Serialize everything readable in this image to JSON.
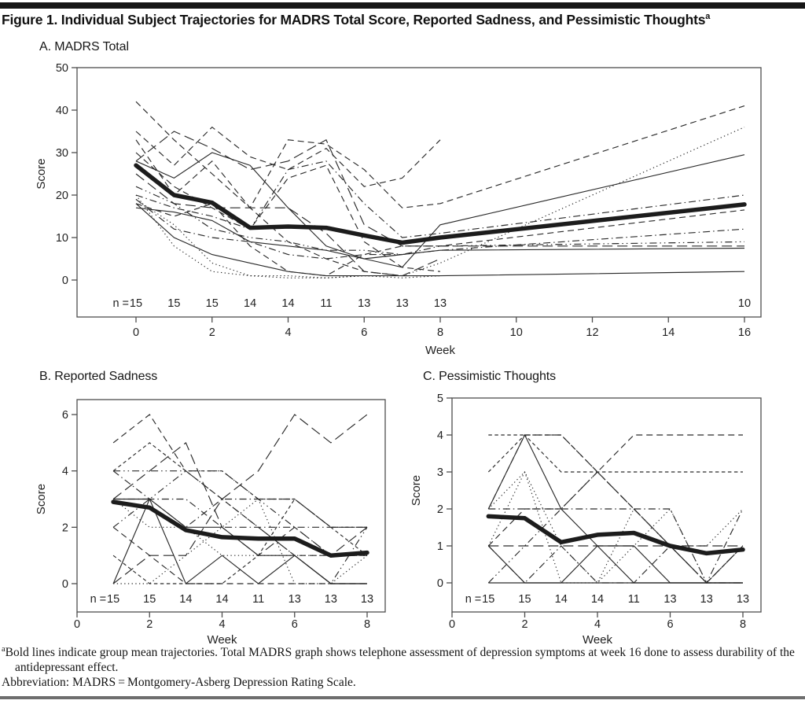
{
  "figure": {
    "title": "Figure 1. Individual Subject Trajectories for MADRS Total Score, Reported Sadness, and Pessimistic Thoughts",
    "title_superscript": "a",
    "footnote_marker": "a",
    "footnote_text": "Bold lines indicate group mean trajectories. Total MADRS graph shows telephone assessment of depression symptoms at week 16 done to assess durability of the antidepressant effect.",
    "abbreviation": "Abbreviation: MADRS = Montgomery-Asberg Depression Rating Scale."
  },
  "colors": {
    "line": "#2a2a2a",
    "mean": "#1c1c1c",
    "frame": "#4d4d4d",
    "text": "#222222"
  },
  "chart_data": [
    {
      "id": "A",
      "type": "line",
      "title": "A. MADRS Total",
      "xlabel": "Week",
      "ylabel": "Score",
      "xlim": [
        0,
        16
      ],
      "ylim": [
        0,
        50
      ],
      "x_ticks": [
        0,
        2,
        4,
        6,
        8,
        10,
        12,
        14,
        16
      ],
      "y_ticks": [
        0,
        10,
        20,
        30,
        40,
        50
      ],
      "grid": false,
      "n_label": "n =",
      "n_weeks": [
        0,
        1,
        2,
        3,
        4,
        5,
        6,
        7,
        8
      ],
      "n_values": [
        15,
        15,
        15,
        14,
        14,
        11,
        13,
        13,
        13
      ],
      "n_extra": {
        "week": 16,
        "value": 10
      },
      "mean": {
        "name": "group mean",
        "weeks": [
          0,
          1,
          2,
          3,
          4,
          5,
          6,
          7,
          8,
          16
        ],
        "values": [
          27,
          20,
          18.2,
          12.3,
          12.6,
          12.3,
          10.5,
          8.8,
          10,
          17.8
        ]
      },
      "individuals": [
        {
          "style": "dash",
          "weeks": [
            0,
            1,
            2,
            3,
            4,
            5,
            6,
            7,
            8
          ],
          "values": [
            42,
            33,
            25,
            17,
            9,
            5,
            2,
            1,
            1
          ]
        },
        {
          "style": "dash",
          "weeks": [
            0,
            1,
            2,
            3,
            4,
            5,
            6,
            7,
            8
          ],
          "values": [
            35,
            27,
            36,
            29,
            26,
            31,
            22,
            24,
            33
          ]
        },
        {
          "style": "solid",
          "weeks": [
            0,
            1,
            2,
            3,
            4,
            5,
            6,
            7,
            8,
            16
          ],
          "values": [
            28,
            24,
            30,
            27,
            17,
            8,
            5,
            3,
            13,
            29.5
          ]
        },
        {
          "style": "dot",
          "weeks": [
            0,
            1,
            2,
            3,
            4,
            5,
            6,
            7,
            8,
            16
          ],
          "values": [
            19,
            13,
            4,
            1,
            1,
            0.5,
            1,
            1,
            4,
            36
          ]
        },
        {
          "style": "dash",
          "weeks": [
            0,
            1,
            2,
            3,
            4,
            5,
            6,
            7,
            8,
            16
          ],
          "values": [
            33,
            20,
            28,
            17,
            33,
            32,
            26,
            17,
            18,
            41
          ]
        },
        {
          "style": "dashdot",
          "weeks": [
            0,
            1,
            2,
            3,
            4,
            5,
            6,
            7,
            8,
            16
          ],
          "values": [
            20,
            17,
            15,
            12,
            26,
            28,
            18,
            10,
            11,
            20
          ]
        },
        {
          "style": "dash",
          "weeks": [
            0,
            1,
            2,
            3,
            4,
            5,
            6,
            7,
            8,
            16
          ],
          "values": [
            18,
            15,
            18,
            8,
            2,
            1,
            6,
            8,
            8,
            16.5
          ]
        },
        {
          "style": "dashdotdot",
          "weeks": [
            0,
            1,
            2,
            3,
            4,
            5,
            6,
            7,
            8,
            16
          ],
          "values": [
            22,
            18,
            12,
            10,
            9,
            7,
            7,
            6,
            8,
            9
          ]
        },
        {
          "style": "dashdot",
          "weeks": [
            0,
            1,
            2,
            3,
            4,
            5,
            6,
            7,
            8,
            16
          ],
          "values": [
            19,
            12,
            10,
            9,
            6,
            5,
            6,
            6,
            7,
            12
          ]
        },
        {
          "style": "solid",
          "weeks": [
            0,
            1,
            2,
            3,
            4,
            5,
            6,
            7,
            8,
            16
          ],
          "values": [
            17,
            16,
            14,
            9,
            8,
            7,
            5,
            6,
            7,
            7.5
          ]
        },
        {
          "style": "solid",
          "weeks": [
            0,
            1,
            2,
            3,
            4,
            5,
            6,
            7,
            8,
            16
          ],
          "values": [
            18,
            10,
            6,
            4,
            2,
            1,
            1,
            1,
            1,
            2
          ]
        },
        {
          "style": "longdash",
          "weeks": [
            0,
            1,
            2,
            3,
            4,
            5,
            6,
            7,
            8
          ],
          "values": [
            25,
            18,
            17,
            17,
            17,
            11,
            2,
            1,
            5
          ]
        },
        {
          "style": "dash",
          "weeks": [
            0,
            1,
            2,
            3,
            4,
            5,
            6,
            7,
            8
          ],
          "values": [
            30,
            22,
            17,
            12,
            24,
            27,
            9,
            3,
            2
          ]
        },
        {
          "style": "dot",
          "weeks": [
            0,
            1,
            2,
            3,
            4,
            5,
            6,
            7,
            8
          ],
          "values": [
            20,
            8,
            2,
            1,
            0.5,
            0.5,
            1,
            0.5,
            1
          ]
        },
        {
          "style": "longdash",
          "weeks": [
            0,
            1,
            2,
            3,
            4,
            5,
            6,
            7,
            8,
            16
          ],
          "values": [
            28,
            35,
            31,
            26,
            28,
            33,
            13,
            8,
            8,
            8
          ]
        }
      ]
    },
    {
      "id": "B",
      "type": "line",
      "title": "B. Reported Sadness",
      "xlabel": "Week",
      "ylabel": "Score",
      "xlim": [
        0,
        8
      ],
      "ylim": [
        0,
        6
      ],
      "x_ticks": [
        0,
        2,
        4,
        6,
        8
      ],
      "y_ticks": [
        0,
        2,
        4,
        6
      ],
      "grid": false,
      "n_label": "n =",
      "n_weeks": [
        1,
        2,
        3,
        4,
        5,
        6,
        7,
        8
      ],
      "n_values": [
        15,
        15,
        14,
        14,
        11,
        13,
        13,
        13
      ],
      "mean": {
        "name": "group mean",
        "weeks": [
          1,
          2,
          3,
          4,
          5,
          6,
          7,
          8
        ],
        "values": [
          2.9,
          2.7,
          1.9,
          1.65,
          1.6,
          1.6,
          1.0,
          1.1
        ]
      },
      "individuals": [
        {
          "style": "dash",
          "weeks": [
            1,
            2,
            3,
            4,
            5,
            6,
            7,
            8
          ],
          "values": [
            5,
            6,
            4,
            3,
            2,
            1,
            1,
            1
          ]
        },
        {
          "style": "shortdash",
          "weeks": [
            1,
            2,
            3,
            4,
            5,
            6,
            7,
            8
          ],
          "values": [
            4,
            5,
            4,
            4,
            3,
            3,
            2,
            2
          ]
        },
        {
          "style": "dashdotdot",
          "weeks": [
            1,
            2,
            3,
            4,
            5,
            6,
            7,
            8
          ],
          "values": [
            4,
            4,
            4,
            4,
            3,
            2,
            1,
            1
          ]
        },
        {
          "style": "longdash",
          "weeks": [
            1,
            2,
            3,
            4,
            5,
            6,
            7,
            8
          ],
          "values": [
            0,
            1,
            1,
            3,
            4,
            6,
            5,
            6
          ]
        },
        {
          "style": "dashdot",
          "weeks": [
            1,
            2,
            3,
            4,
            5,
            6,
            7,
            8
          ],
          "values": [
            3,
            3,
            2,
            3,
            3,
            3,
            2,
            2
          ]
        },
        {
          "style": "solid",
          "weeks": [
            1,
            2,
            3,
            4,
            5,
            6,
            7,
            8
          ],
          "values": [
            0,
            3,
            0,
            1,
            0,
            1,
            0,
            0
          ]
        },
        {
          "style": "dot",
          "weeks": [
            1,
            2,
            3,
            4,
            5,
            6,
            7,
            8
          ],
          "values": [
            0,
            0,
            1,
            2,
            3,
            0,
            0,
            1
          ]
        },
        {
          "style": "dash",
          "weeks": [
            1,
            2,
            3,
            4,
            5,
            6,
            7,
            8
          ],
          "values": [
            2,
            1,
            0,
            0,
            0,
            0,
            0,
            0
          ]
        },
        {
          "style": "dashdot",
          "weeks": [
            1,
            2,
            3,
            4,
            5,
            6,
            7,
            8
          ],
          "values": [
            4,
            3,
            3,
            2,
            2,
            2,
            2,
            2
          ]
        },
        {
          "style": "longdash",
          "weeks": [
            1,
            2,
            3,
            4,
            5,
            6,
            7,
            8
          ],
          "values": [
            3,
            4,
            5,
            2,
            1,
            2,
            1,
            2
          ]
        },
        {
          "style": "solid",
          "weeks": [
            1,
            2,
            3,
            4,
            5,
            6,
            7,
            8
          ],
          "values": [
            3,
            3,
            2,
            2,
            1,
            1,
            0,
            0
          ]
        },
        {
          "style": "dot",
          "weeks": [
            1,
            2,
            3,
            4,
            5,
            6,
            7,
            8
          ],
          "values": [
            3,
            2,
            2,
            1,
            1,
            1,
            1,
            1
          ]
        },
        {
          "style": "shortdash",
          "weeks": [
            1,
            2,
            3,
            4,
            5,
            6,
            7,
            8
          ],
          "values": [
            1,
            0,
            0,
            0,
            1,
            3,
            2,
            1
          ]
        },
        {
          "style": "dashdotdot",
          "weeks": [
            1,
            2,
            3,
            4,
            5,
            6,
            7,
            8
          ],
          "values": [
            2,
            3,
            4,
            3,
            2,
            1,
            0,
            2
          ]
        }
      ]
    },
    {
      "id": "C",
      "type": "line",
      "title": "C. Pessimistic Thoughts",
      "xlabel": "Week",
      "ylabel": "Score",
      "xlim": [
        0,
        8
      ],
      "ylim": [
        0,
        5
      ],
      "x_ticks": [
        0,
        2,
        4,
        6,
        8
      ],
      "y_ticks": [
        0,
        1,
        2,
        3,
        4,
        5
      ],
      "grid": false,
      "n_label": "n =",
      "n_weeks": [
        1,
        2,
        3,
        4,
        5,
        6,
        7,
        8
      ],
      "n_values": [
        15,
        15,
        14,
        14,
        11,
        13,
        13,
        13
      ],
      "mean": {
        "name": "group mean",
        "weeks": [
          1,
          2,
          3,
          4,
          5,
          6,
          7,
          8
        ],
        "values": [
          1.8,
          1.75,
          1.1,
          1.3,
          1.35,
          1.0,
          0.8,
          0.9
        ]
      },
      "individuals": [
        {
          "style": "shortdash",
          "weeks": [
            1,
            2,
            3,
            4,
            5,
            6,
            7,
            8
          ],
          "values": [
            4,
            4,
            4,
            3,
            2,
            1,
            0,
            1
          ]
        },
        {
          "style": "dash",
          "weeks": [
            1,
            2,
            3,
            4,
            5,
            6,
            7,
            8
          ],
          "values": [
            1,
            2,
            2,
            3,
            4,
            4,
            4,
            4
          ]
        },
        {
          "style": "shortdash",
          "weeks": [
            1,
            2,
            3,
            4,
            5,
            6,
            7,
            8
          ],
          "values": [
            3,
            4,
            3,
            3,
            3,
            3,
            3,
            3
          ]
        },
        {
          "style": "solid",
          "weeks": [
            1,
            2,
            3,
            4,
            5,
            6,
            7,
            8
          ],
          "values": [
            2,
            4,
            2,
            1,
            0,
            0,
            0,
            0
          ]
        },
        {
          "style": "solid",
          "weeks": [
            1,
            2,
            3,
            4,
            5,
            6,
            7,
            8
          ],
          "values": [
            1,
            0,
            0,
            1,
            1,
            0,
            0,
            0
          ]
        },
        {
          "style": "dot",
          "weeks": [
            1,
            2,
            3,
            4,
            5,
            6,
            7,
            8
          ],
          "values": [
            2,
            3,
            0,
            0,
            1,
            2,
            0,
            1
          ]
        },
        {
          "style": "dashdot",
          "weeks": [
            1,
            2,
            3,
            4,
            5,
            6,
            7,
            8
          ],
          "values": [
            2,
            2,
            2,
            2,
            2,
            2,
            0,
            0
          ]
        },
        {
          "style": "longdash",
          "weeks": [
            1,
            2,
            3,
            4,
            5,
            6,
            7,
            8
          ],
          "values": [
            1,
            1,
            1,
            1,
            1,
            1,
            1,
            1
          ]
        },
        {
          "style": "dashdot",
          "weeks": [
            1,
            2,
            3,
            4,
            5,
            6,
            7,
            8
          ],
          "values": [
            1,
            0,
            1,
            0,
            0,
            1,
            0,
            2
          ]
        },
        {
          "style": "dashdotdot",
          "weeks": [
            1,
            2,
            3,
            4,
            5,
            6,
            7,
            8
          ],
          "values": [
            0,
            1,
            2,
            3,
            2,
            1,
            0,
            1
          ]
        },
        {
          "style": "dash",
          "weeks": [
            1,
            2,
            3,
            4,
            5,
            6,
            7,
            8
          ],
          "values": [
            2,
            4,
            4,
            3,
            2,
            1,
            0,
            1
          ]
        },
        {
          "style": "solid",
          "weeks": [
            1,
            2,
            3,
            4,
            5,
            6,
            7,
            8
          ],
          "values": [
            0,
            0,
            0,
            0,
            0,
            0,
            0,
            0
          ]
        },
        {
          "style": "dot",
          "weeks": [
            1,
            2,
            3,
            4,
            5,
            6,
            7,
            8
          ],
          "values": [
            1,
            3,
            1,
            0,
            2,
            1,
            1,
            2
          ]
        }
      ]
    }
  ]
}
